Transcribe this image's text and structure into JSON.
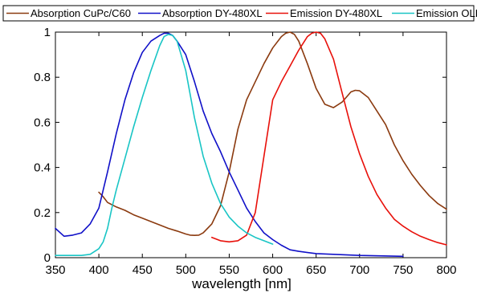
{
  "chart_data": {
    "type": "line",
    "title": "",
    "xlabel": "wavelength [nm]",
    "ylabel": "",
    "xlim": [
      350,
      800
    ],
    "ylim": [
      0,
      1
    ],
    "grid": false,
    "legend_position": "top",
    "xticks": [
      350,
      400,
      450,
      500,
      550,
      600,
      650,
      700,
      750,
      800
    ],
    "yticks": [
      0,
      0.2,
      0.4,
      0.6,
      0.8,
      1
    ],
    "ytick_labels": [
      "0",
      "0.2",
      "0.4",
      "0.6",
      "0.8",
      "1"
    ],
    "series": [
      {
        "name": "Absorption CuPc/C60",
        "color": "#8b3a0f",
        "x": [
          400,
          405,
          410,
          420,
          430,
          440,
          450,
          460,
          470,
          480,
          490,
          500,
          505,
          510,
          515,
          520,
          530,
          540,
          550,
          560,
          570,
          580,
          590,
          600,
          610,
          615,
          620,
          625,
          630,
          640,
          650,
          660,
          670,
          680,
          690,
          695,
          700,
          710,
          720,
          730,
          740,
          750,
          760,
          770,
          780,
          790,
          800
        ],
        "y": [
          0.29,
          0.27,
          0.245,
          0.225,
          0.21,
          0.19,
          0.175,
          0.16,
          0.145,
          0.13,
          0.118,
          0.105,
          0.1,
          0.099,
          0.1,
          0.11,
          0.15,
          0.23,
          0.38,
          0.57,
          0.7,
          0.78,
          0.86,
          0.93,
          0.98,
          0.995,
          1.0,
          0.99,
          0.96,
          0.86,
          0.75,
          0.68,
          0.665,
          0.69,
          0.735,
          0.742,
          0.74,
          0.71,
          0.65,
          0.59,
          0.5,
          0.43,
          0.37,
          0.32,
          0.275,
          0.24,
          0.215
        ]
      },
      {
        "name": "Absorption DY-480XL",
        "color": "#1010c8",
        "x": [
          350,
          360,
          370,
          380,
          390,
          400,
          410,
          420,
          430,
          440,
          450,
          460,
          470,
          475,
          480,
          485,
          490,
          500,
          510,
          520,
          530,
          540,
          550,
          560,
          570,
          580,
          590,
          600,
          610,
          620,
          630,
          650,
          700,
          750
        ],
        "y": [
          0.13,
          0.095,
          0.1,
          0.11,
          0.15,
          0.22,
          0.38,
          0.55,
          0.7,
          0.82,
          0.91,
          0.96,
          0.985,
          0.995,
          0.995,
          0.985,
          0.96,
          0.9,
          0.78,
          0.65,
          0.55,
          0.47,
          0.38,
          0.3,
          0.22,
          0.16,
          0.11,
          0.08,
          0.055,
          0.035,
          0.028,
          0.018,
          0.01,
          0.006
        ]
      },
      {
        "name": "Emission DY-480XL",
        "color": "#e8100a",
        "x": [
          530,
          540,
          550,
          560,
          570,
          580,
          590,
          600,
          610,
          620,
          630,
          640,
          645,
          650,
          655,
          660,
          670,
          680,
          690,
          700,
          710,
          720,
          730,
          740,
          750,
          760,
          770,
          780,
          790,
          800
        ],
        "y": [
          0.09,
          0.075,
          0.07,
          0.075,
          0.1,
          0.2,
          0.45,
          0.7,
          0.78,
          0.85,
          0.92,
          0.98,
          0.995,
          1.0,
          0.995,
          0.97,
          0.88,
          0.73,
          0.58,
          0.46,
          0.36,
          0.28,
          0.22,
          0.17,
          0.14,
          0.115,
          0.095,
          0.08,
          0.067,
          0.057
        ]
      },
      {
        "name": "Emission OLED",
        "color": "#19c5c5",
        "x": [
          350,
          360,
          370,
          380,
          390,
          400,
          405,
          410,
          415,
          420,
          430,
          440,
          450,
          460,
          470,
          475,
          480,
          485,
          490,
          500,
          510,
          520,
          530,
          540,
          550,
          560,
          570,
          580,
          590,
          600
        ],
        "y": [
          0.01,
          0.01,
          0.01,
          0.01,
          0.015,
          0.04,
          0.07,
          0.13,
          0.22,
          0.3,
          0.44,
          0.58,
          0.71,
          0.83,
          0.94,
          0.98,
          0.99,
          0.985,
          0.96,
          0.83,
          0.62,
          0.45,
          0.33,
          0.24,
          0.18,
          0.14,
          0.11,
          0.09,
          0.075,
          0.06
        ]
      }
    ]
  }
}
